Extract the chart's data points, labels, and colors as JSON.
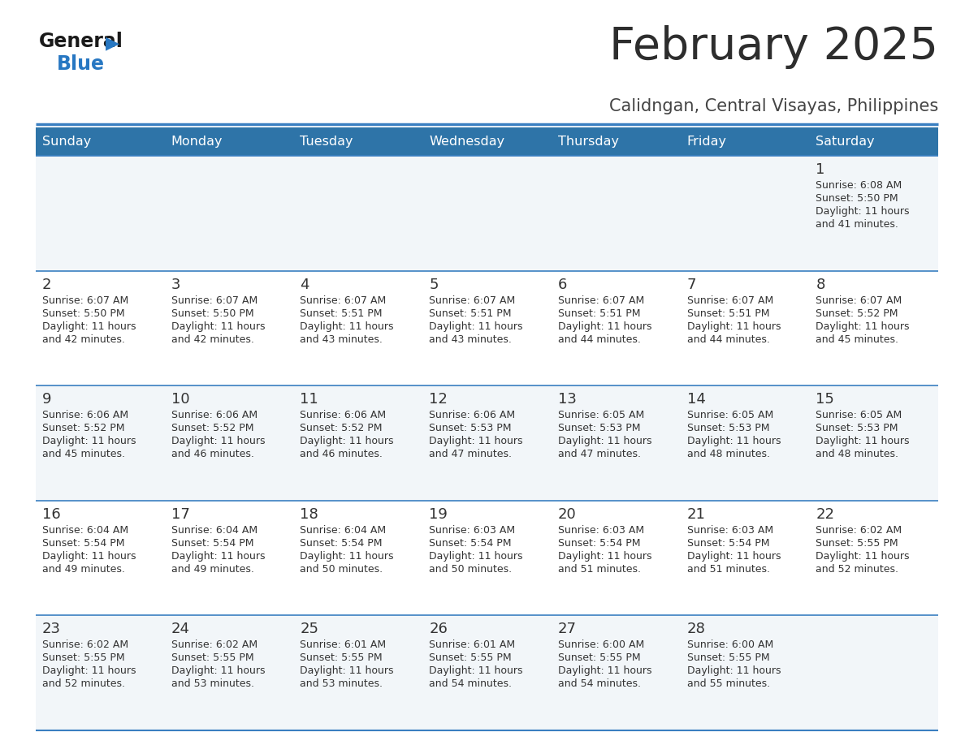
{
  "title": "February 2025",
  "subtitle": "Calidngan, Central Visayas, Philippines",
  "header_bg": "#2E74A8",
  "header_text_color": "#FFFFFF",
  "divider_color": "#3A7FC1",
  "day_names": [
    "Sunday",
    "Monday",
    "Tuesday",
    "Wednesday",
    "Thursday",
    "Friday",
    "Saturday"
  ],
  "calendar": [
    [
      null,
      null,
      null,
      null,
      null,
      null,
      {
        "day": "1",
        "sunrise": "6:08 AM",
        "sunset": "5:50 PM",
        "daylight_min": "41"
      }
    ],
    [
      {
        "day": "2",
        "sunrise": "6:07 AM",
        "sunset": "5:50 PM",
        "daylight_min": "42"
      },
      {
        "day": "3",
        "sunrise": "6:07 AM",
        "sunset": "5:50 PM",
        "daylight_min": "42"
      },
      {
        "day": "4",
        "sunrise": "6:07 AM",
        "sunset": "5:51 PM",
        "daylight_min": "43"
      },
      {
        "day": "5",
        "sunrise": "6:07 AM",
        "sunset": "5:51 PM",
        "daylight_min": "43"
      },
      {
        "day": "6",
        "sunrise": "6:07 AM",
        "sunset": "5:51 PM",
        "daylight_min": "44"
      },
      {
        "day": "7",
        "sunrise": "6:07 AM",
        "sunset": "5:51 PM",
        "daylight_min": "44"
      },
      {
        "day": "8",
        "sunrise": "6:07 AM",
        "sunset": "5:52 PM",
        "daylight_min": "45"
      }
    ],
    [
      {
        "day": "9",
        "sunrise": "6:06 AM",
        "sunset": "5:52 PM",
        "daylight_min": "45"
      },
      {
        "day": "10",
        "sunrise": "6:06 AM",
        "sunset": "5:52 PM",
        "daylight_min": "46"
      },
      {
        "day": "11",
        "sunrise": "6:06 AM",
        "sunset": "5:52 PM",
        "daylight_min": "46"
      },
      {
        "day": "12",
        "sunrise": "6:06 AM",
        "sunset": "5:53 PM",
        "daylight_min": "47"
      },
      {
        "day": "13",
        "sunrise": "6:05 AM",
        "sunset": "5:53 PM",
        "daylight_min": "47"
      },
      {
        "day": "14",
        "sunrise": "6:05 AM",
        "sunset": "5:53 PM",
        "daylight_min": "48"
      },
      {
        "day": "15",
        "sunrise": "6:05 AM",
        "sunset": "5:53 PM",
        "daylight_min": "48"
      }
    ],
    [
      {
        "day": "16",
        "sunrise": "6:04 AM",
        "sunset": "5:54 PM",
        "daylight_min": "49"
      },
      {
        "day": "17",
        "sunrise": "6:04 AM",
        "sunset": "5:54 PM",
        "daylight_min": "49"
      },
      {
        "day": "18",
        "sunrise": "6:04 AM",
        "sunset": "5:54 PM",
        "daylight_min": "50"
      },
      {
        "day": "19",
        "sunrise": "6:03 AM",
        "sunset": "5:54 PM",
        "daylight_min": "50"
      },
      {
        "day": "20",
        "sunrise": "6:03 AM",
        "sunset": "5:54 PM",
        "daylight_min": "51"
      },
      {
        "day": "21",
        "sunrise": "6:03 AM",
        "sunset": "5:54 PM",
        "daylight_min": "51"
      },
      {
        "day": "22",
        "sunrise": "6:02 AM",
        "sunset": "5:55 PM",
        "daylight_min": "52"
      }
    ],
    [
      {
        "day": "23",
        "sunrise": "6:02 AM",
        "sunset": "5:55 PM",
        "daylight_min": "52"
      },
      {
        "day": "24",
        "sunrise": "6:02 AM",
        "sunset": "5:55 PM",
        "daylight_min": "53"
      },
      {
        "day": "25",
        "sunrise": "6:01 AM",
        "sunset": "5:55 PM",
        "daylight_min": "53"
      },
      {
        "day": "26",
        "sunrise": "6:01 AM",
        "sunset": "5:55 PM",
        "daylight_min": "54"
      },
      {
        "day": "27",
        "sunrise": "6:00 AM",
        "sunset": "5:55 PM",
        "daylight_min": "54"
      },
      {
        "day": "28",
        "sunrise": "6:00 AM",
        "sunset": "5:55 PM",
        "daylight_min": "55"
      },
      null
    ]
  ],
  "logo_general_color": "#1a1a1a",
  "logo_blue_color": "#2777C2",
  "title_color": "#2d2d2d",
  "subtitle_color": "#444444",
  "cell_bg": "#F2F6F9",
  "cell_bg_alt": "#FFFFFF"
}
